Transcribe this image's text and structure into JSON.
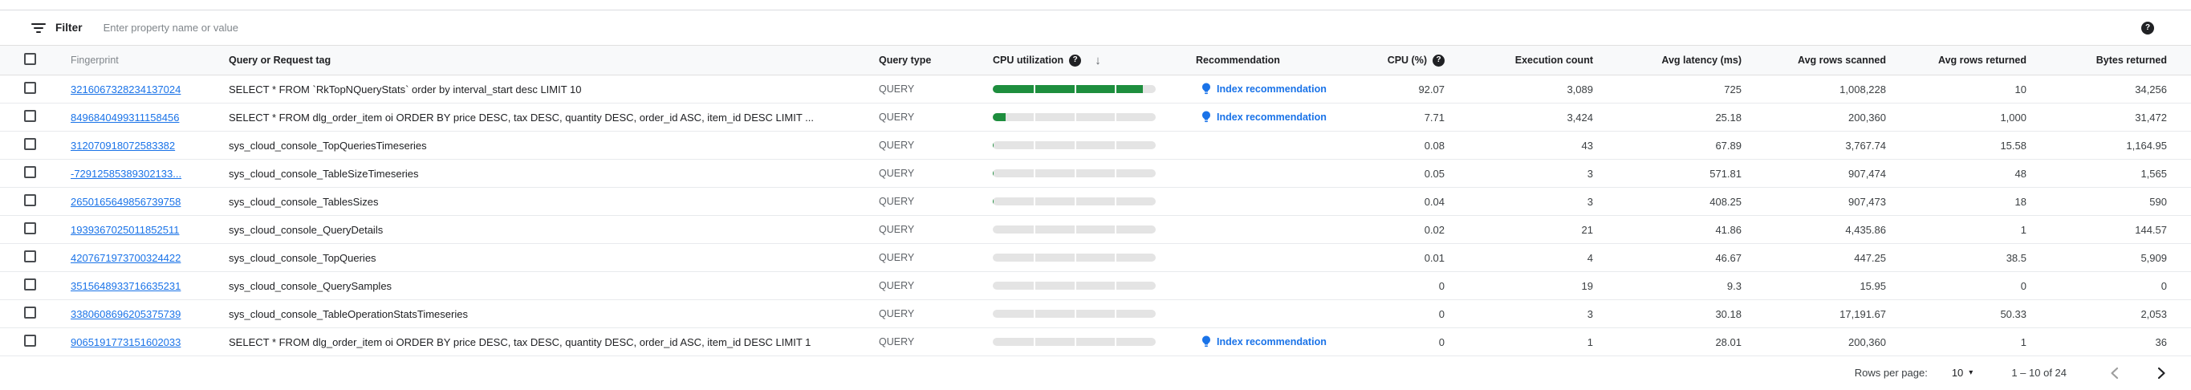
{
  "filter": {
    "label": "Filter",
    "placeholder": "Enter property name or value"
  },
  "toolbar_help_icon": "?",
  "table": {
    "columns": [
      {
        "label": "",
        "key": "select"
      },
      {
        "label": "Fingerprint",
        "key": "fingerprint"
      },
      {
        "label": "Query or Request tag",
        "key": "query"
      },
      {
        "label": "Query type",
        "key": "query_type"
      },
      {
        "label": "CPU utilization",
        "key": "cpu_utilization",
        "has_help": true,
        "sorted": "desc"
      },
      {
        "label": "Recommendation",
        "key": "recommendation"
      },
      {
        "label": "CPU (%)",
        "key": "cpu_pct",
        "has_help": true
      },
      {
        "label": "Execution count",
        "key": "execution_count"
      },
      {
        "label": "Avg latency (ms)",
        "key": "avg_latency_ms"
      },
      {
        "label": "Avg rows scanned",
        "key": "avg_rows_scanned"
      },
      {
        "label": "Avg rows returned",
        "key": "avg_rows_returned"
      },
      {
        "label": "Bytes returned",
        "key": "bytes_returned"
      }
    ],
    "recommendation_label": "Index recommendation",
    "rows": [
      {
        "fingerprint": "3216067328234137024",
        "query": "SELECT * FROM `RkTopNQueryStats` order by interval_start desc LIMIT 10",
        "query_type": "QUERY",
        "cpu_utilization_pct": 92.07,
        "recommendation": true,
        "cpu_pct": "92.07",
        "execution_count": "3,089",
        "avg_latency_ms": "725",
        "avg_rows_scanned": "1,008,228",
        "avg_rows_returned": "10",
        "bytes_returned": "34,256"
      },
      {
        "fingerprint": "8496840499311158456",
        "query": "SELECT * FROM dlg_order_item oi ORDER BY price DESC, tax DESC, quantity DESC, order_id ASC, item_id DESC LIMIT ...",
        "query_type": "QUERY",
        "cpu_utilization_pct": 7.71,
        "recommendation": true,
        "cpu_pct": "7.71",
        "execution_count": "3,424",
        "avg_latency_ms": "25.18",
        "avg_rows_scanned": "200,360",
        "avg_rows_returned": "1,000",
        "bytes_returned": "31,472"
      },
      {
        "fingerprint": "312070918072583382",
        "query": "sys_cloud_console_TopQueriesTimeseries",
        "query_type": "QUERY",
        "cpu_utilization_pct": 0.08,
        "recommendation": false,
        "cpu_pct": "0.08",
        "execution_count": "43",
        "avg_latency_ms": "67.89",
        "avg_rows_scanned": "3,767.74",
        "avg_rows_returned": "15.58",
        "bytes_returned": "1,164.95"
      },
      {
        "fingerprint": "-72912585389302133...",
        "query": "sys_cloud_console_TableSizeTimeseries",
        "query_type": "QUERY",
        "cpu_utilization_pct": 0.05,
        "recommendation": false,
        "cpu_pct": "0.05",
        "execution_count": "3",
        "avg_latency_ms": "571.81",
        "avg_rows_scanned": "907,474",
        "avg_rows_returned": "48",
        "bytes_returned": "1,565"
      },
      {
        "fingerprint": "2650165649856739758",
        "query": "sys_cloud_console_TablesSizes",
        "query_type": "QUERY",
        "cpu_utilization_pct": 0.04,
        "recommendation": false,
        "cpu_pct": "0.04",
        "execution_count": "3",
        "avg_latency_ms": "408.25",
        "avg_rows_scanned": "907,473",
        "avg_rows_returned": "18",
        "bytes_returned": "590"
      },
      {
        "fingerprint": "1939367025011852511",
        "query": "sys_cloud_console_QueryDetails",
        "query_type": "QUERY",
        "cpu_utilization_pct": 0.02,
        "recommendation": false,
        "cpu_pct": "0.02",
        "execution_count": "21",
        "avg_latency_ms": "41.86",
        "avg_rows_scanned": "4,435.86",
        "avg_rows_returned": "1",
        "bytes_returned": "144.57"
      },
      {
        "fingerprint": "4207671973700324422",
        "query": "sys_cloud_console_TopQueries",
        "query_type": "QUERY",
        "cpu_utilization_pct": 0.01,
        "recommendation": false,
        "cpu_pct": "0.01",
        "execution_count": "4",
        "avg_latency_ms": "46.67",
        "avg_rows_scanned": "447.25",
        "avg_rows_returned": "38.5",
        "bytes_returned": "5,909"
      },
      {
        "fingerprint": "3515648933716635231",
        "query": "sys_cloud_console_QuerySamples",
        "query_type": "QUERY",
        "cpu_utilization_pct": 0,
        "recommendation": false,
        "cpu_pct": "0",
        "execution_count": "19",
        "avg_latency_ms": "9.3",
        "avg_rows_scanned": "15.95",
        "avg_rows_returned": "0",
        "bytes_returned": "0"
      },
      {
        "fingerprint": "3380608696205375739",
        "query": "sys_cloud_console_TableOperationStatsTimeseries",
        "query_type": "QUERY",
        "cpu_utilization_pct": 0,
        "recommendation": false,
        "cpu_pct": "0",
        "execution_count": "3",
        "avg_latency_ms": "30.18",
        "avg_rows_scanned": "17,191.67",
        "avg_rows_returned": "50.33",
        "bytes_returned": "2,053"
      },
      {
        "fingerprint": "9065191773151602033",
        "query": "SELECT * FROM dlg_order_item oi ORDER BY price DESC, tax DESC, quantity DESC, order_id ASC, item_id DESC LIMIT 1",
        "query_type": "QUERY",
        "cpu_utilization_pct": 0,
        "recommendation": true,
        "cpu_pct": "0",
        "execution_count": "1",
        "avg_latency_ms": "28.01",
        "avg_rows_scanned": "200,360",
        "avg_rows_returned": "1",
        "bytes_returned": "36"
      }
    ]
  },
  "pagination": {
    "rows_per_page_label": "Rows per page:",
    "rows_per_page_value": "10",
    "range": "1 – 10 of 24"
  },
  "colors": {
    "link": "#1a73e8",
    "bar_fill": "#1e8e3e",
    "bar_track": "#e4e4e4",
    "header_bg": "#f8f9fa",
    "border": "#e0e0e0"
  }
}
